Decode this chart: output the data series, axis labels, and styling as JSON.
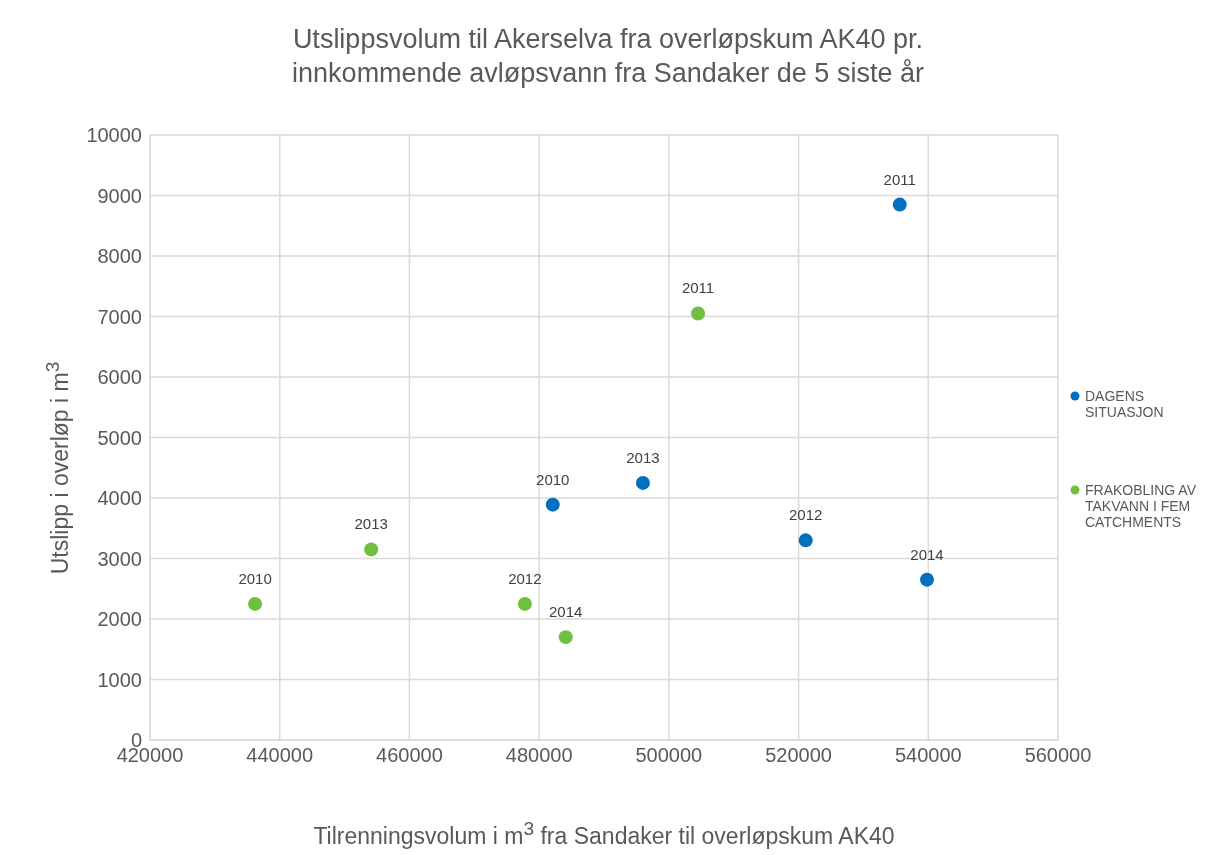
{
  "chart_data": {
    "type": "scatter",
    "title": "Utslippsvolum til Akerselva fra overløpskum AK40 pr. innkommende avløpsvann fra Sandaker de 5 siste år",
    "xlabel": "Tilrenningsvolum i m$^{3}$ fra Sandaker til overløpskum AK40",
    "ylabel": "Utslipp i overløp i m$^{3}$",
    "xlim": [
      420000,
      560000
    ],
    "xticks": [
      420000,
      440000,
      460000,
      480000,
      500000,
      520000,
      540000,
      560000
    ],
    "ylim": [
      0,
      10000
    ],
    "yticks": [
      0,
      1000,
      2000,
      3000,
      4000,
      5000,
      6000,
      7000,
      8000,
      9000,
      10000
    ],
    "grid": true,
    "legend": "right",
    "marker": "circle",
    "series": [
      {
        "name": "DAGENS SITUASJON",
        "color": "#0070c0",
        "x": [
          482100,
          535600,
          521100,
          496000,
          539800
        ],
        "values": [
          3890,
          8850,
          3300,
          4250,
          2650
        ]
      },
      {
        "name": "FRAKOBLING AV TAKVANN I FEM CATCHMENTS",
        "color": "#70bf41",
        "x": [
          436200,
          504500,
          477800,
          454100,
          484100
        ],
        "values": [
          2250,
          7050,
          2250,
          3150,
          1700
        ]
      }
    ],
    "annotations": [
      {
        "text": "2010",
        "x": 482100,
        "y": 3890
      },
      {
        "text": "2011",
        "x": 535600,
        "y": 8850
      },
      {
        "text": "2012",
        "x": 521100,
        "y": 3300
      },
      {
        "text": "2013",
        "x": 496000,
        "y": 4250
      },
      {
        "text": "2014",
        "x": 539800,
        "y": 2650
      },
      {
        "text": "2010",
        "x": 436200,
        "y": 2250
      },
      {
        "text": "2011",
        "x": 504500,
        "y": 7050
      },
      {
        "text": "2012",
        "x": 477800,
        "y": 2250
      },
      {
        "text": "2013",
        "x": 454100,
        "y": 3150
      },
      {
        "text": "2014",
        "x": 484100,
        "y": 1700
      }
    ]
  }
}
